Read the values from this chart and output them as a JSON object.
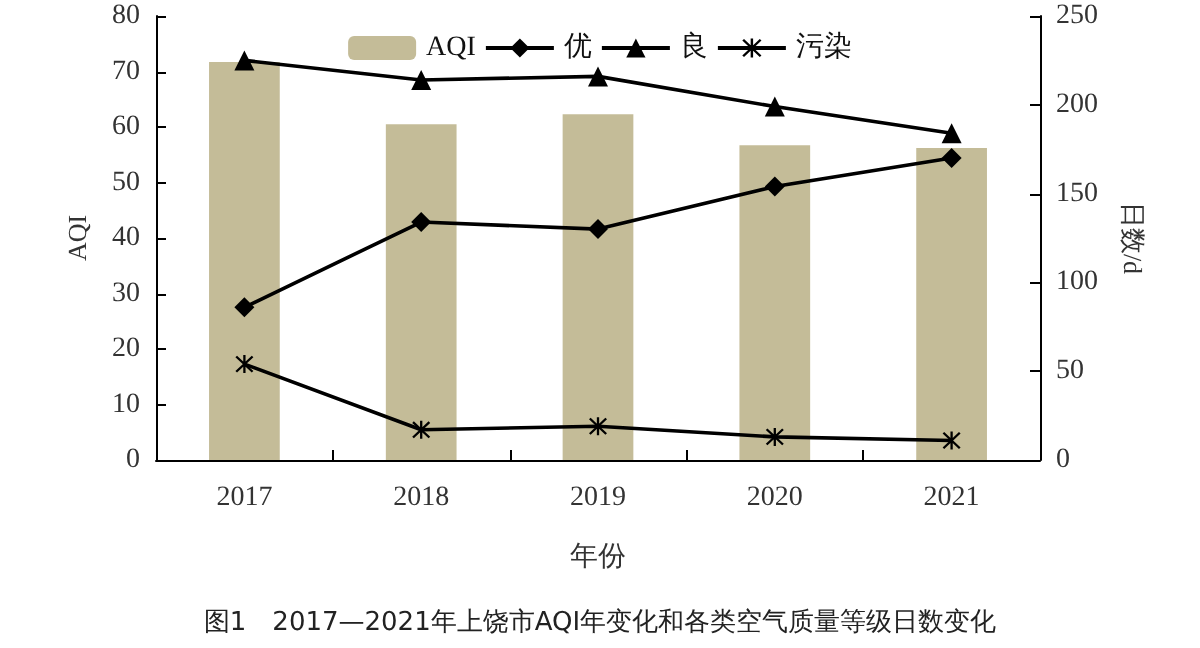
{
  "chart_data": {
    "type": "bar",
    "xlabel": "年份",
    "ylabel": "AQI",
    "y2label": "日数/d",
    "categories": [
      "2017",
      "2018",
      "2019",
      "2020",
      "2021"
    ],
    "series": [
      {
        "name": "AQI",
        "color": "#c4bc98",
        "values": [
          71.7,
          60.5,
          62.3,
          56.7,
          56.2
        ]
      },
      {
        "name": "优",
        "type": "line",
        "axis": "y2",
        "color": "#000000",
        "marker": "diamond",
        "values": [
          86,
          134,
          130,
          154,
          170
        ]
      },
      {
        "name": "良",
        "type": "line",
        "axis": "y2",
        "color": "#000000",
        "marker": "triangle",
        "values": [
          225,
          214,
          216,
          199,
          184
        ]
      },
      {
        "name": "污染",
        "type": "line",
        "axis": "y2",
        "color": "#000000",
        "marker": "cross",
        "values": [
          54,
          17,
          19,
          13,
          11
        ]
      }
    ],
    "ylim": [
      0,
      80
    ],
    "yticks": [
      0,
      10,
      20,
      30,
      40,
      50,
      60,
      70,
      80
    ],
    "y2lim": [
      0,
      250
    ],
    "y2ticks": [
      0,
      50,
      100,
      150,
      200,
      250
    ],
    "grid": false,
    "legend": "top",
    "annotations": [
      "图1　2017—2021年上饶市AQI年变化和各类空气质量等级日数变化"
    ]
  }
}
